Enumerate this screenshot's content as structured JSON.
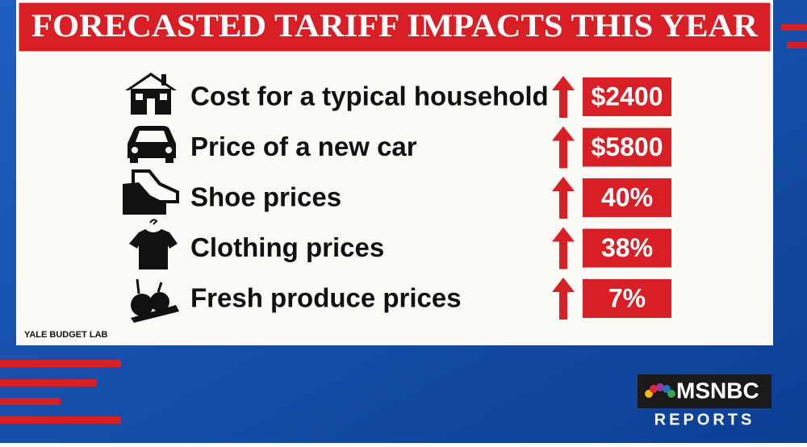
{
  "header": {
    "title": "FORECASTED TARIFF IMPACTS THIS YEAR"
  },
  "items": [
    {
      "label": "Cost for a typical household",
      "value": "$2400"
    },
    {
      "label": "Price of a new car",
      "value": "$5800"
    },
    {
      "label": "Shoe prices",
      "value": "40%"
    },
    {
      "label": "Clothing prices",
      "value": "38%"
    },
    {
      "label": "Fresh produce prices",
      "value": "7%"
    }
  ],
  "source": "YALE BUDGET LAB",
  "logo": {
    "network": "MSNBC",
    "show": "REPORTS"
  }
}
